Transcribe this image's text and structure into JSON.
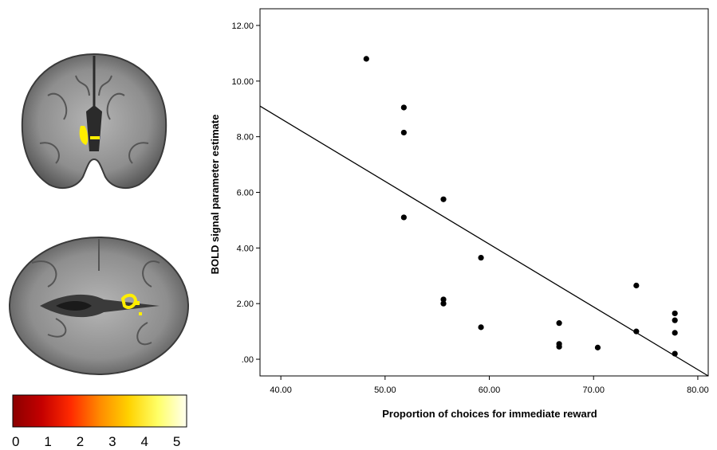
{
  "colorbar": {
    "tick_labels": [
      "0",
      "1",
      "2",
      "3",
      "4",
      "5"
    ],
    "colors": [
      "#8b0000",
      "#c40000",
      "#ff2a00",
      "#ff8a00",
      "#ffd200",
      "#ffff66",
      "#fffff0"
    ]
  },
  "brain": {
    "slice_color": "#8f8f8f",
    "highlight_color": "#ffee00"
  },
  "chart_data": {
    "type": "scatter",
    "xlabel": "Proportion of choices for immediate reward",
    "ylabel": "BOLD signal parameter estimate",
    "xlim": [
      38.0,
      81.0
    ],
    "ylim": [
      -0.6,
      12.6
    ],
    "x_ticks": [
      "40.00",
      "50.00",
      "60.00",
      "70.00",
      "80.00"
    ],
    "x_tick_values": [
      40,
      50,
      60,
      70,
      80
    ],
    "y_ticks": [
      ".00",
      "2.00",
      "4.00",
      "6.00",
      "8.00",
      "10.00",
      "12.00"
    ],
    "y_tick_values": [
      0,
      2,
      4,
      6,
      8,
      10,
      12
    ],
    "points": [
      {
        "x": 48.2,
        "y": 10.8
      },
      {
        "x": 51.8,
        "y": 9.05
      },
      {
        "x": 51.8,
        "y": 8.15
      },
      {
        "x": 51.8,
        "y": 5.1
      },
      {
        "x": 55.6,
        "y": 5.75
      },
      {
        "x": 55.6,
        "y": 2.15
      },
      {
        "x": 55.6,
        "y": 2.0
      },
      {
        "x": 59.2,
        "y": 3.65
      },
      {
        "x": 59.2,
        "y": 1.15
      },
      {
        "x": 66.7,
        "y": 1.3
      },
      {
        "x": 66.7,
        "y": 0.55
      },
      {
        "x": 66.7,
        "y": 0.45
      },
      {
        "x": 70.4,
        "y": 0.42
      },
      {
        "x": 74.1,
        "y": 2.65
      },
      {
        "x": 74.1,
        "y": 1.0
      },
      {
        "x": 77.8,
        "y": 1.65
      },
      {
        "x": 77.8,
        "y": 1.4
      },
      {
        "x": 77.8,
        "y": 0.95
      },
      {
        "x": 77.8,
        "y": 0.2
      }
    ],
    "fit_line": {
      "x": [
        38.0,
        81.0
      ],
      "y": [
        9.1,
        -0.6
      ]
    },
    "grid": false,
    "legend": "none"
  }
}
